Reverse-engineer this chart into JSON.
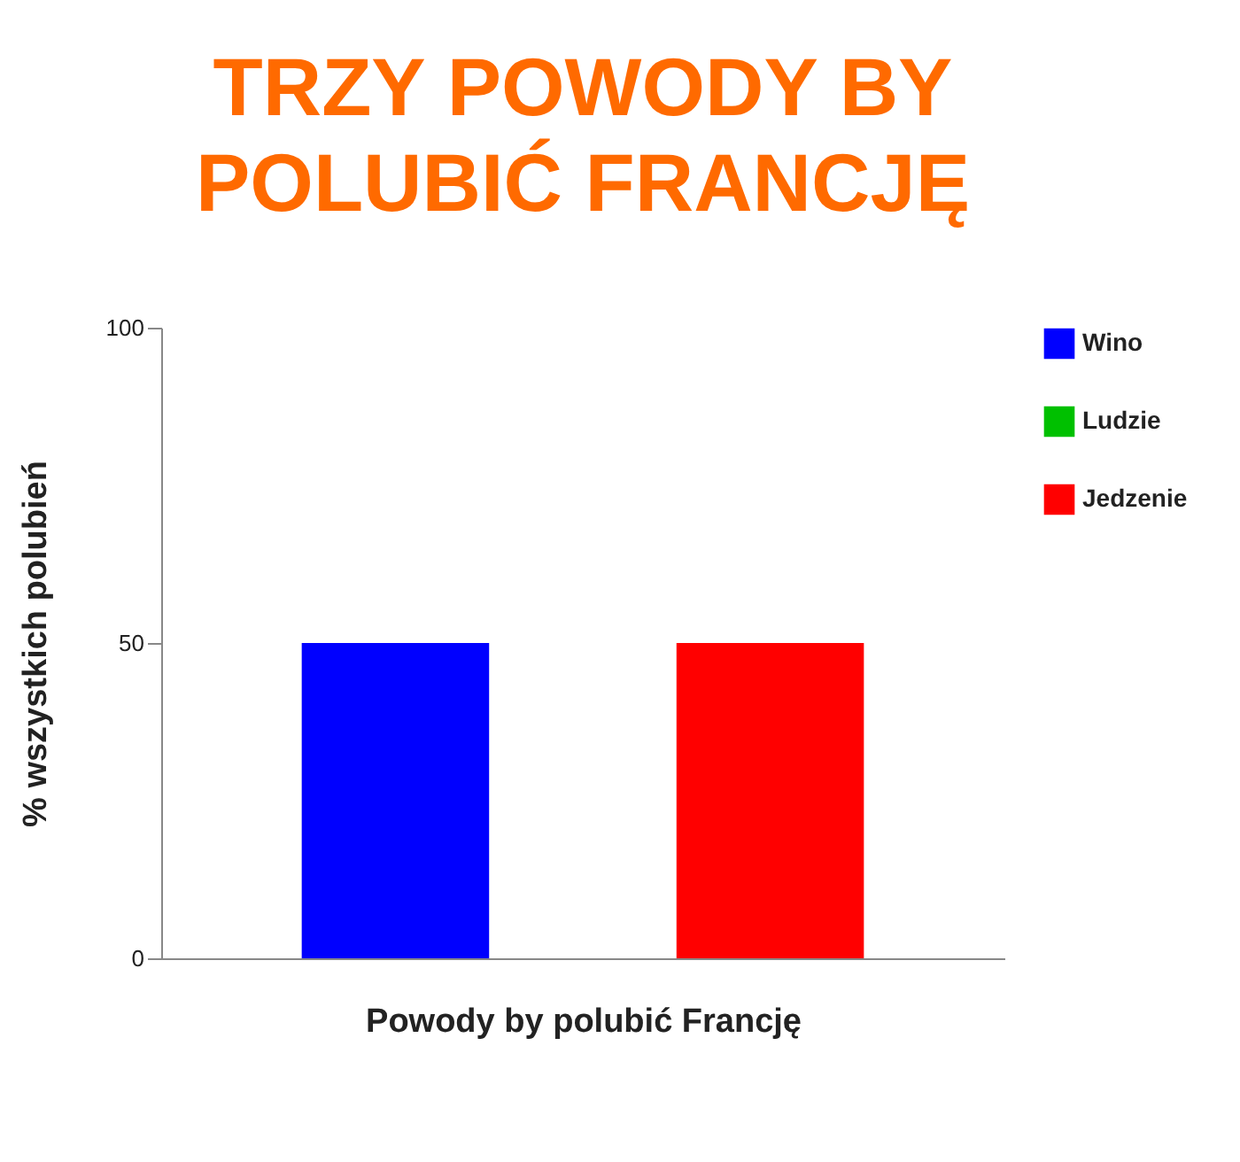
{
  "chart_data": {
    "type": "bar",
    "title": "TRZY POWODY BY POLUBIĆ FRANCJĘ",
    "xlabel": "Powody by polubić Francję",
    "ylabel": "% wszystkich polubień",
    "categories": [
      null
    ],
    "series": [
      {
        "name": "Wino",
        "color": "#0000ff",
        "values": [
          50
        ]
      },
      {
        "name": "Ludzie",
        "color": "#00c000",
        "values": [
          0
        ]
      },
      {
        "name": "Jedzenie",
        "color": "#ff0000",
        "values": [
          50
        ]
      }
    ],
    "ylim": [
      0,
      100
    ],
    "yticks": [
      0,
      50,
      100
    ],
    "legend": "right",
    "grid": false
  }
}
